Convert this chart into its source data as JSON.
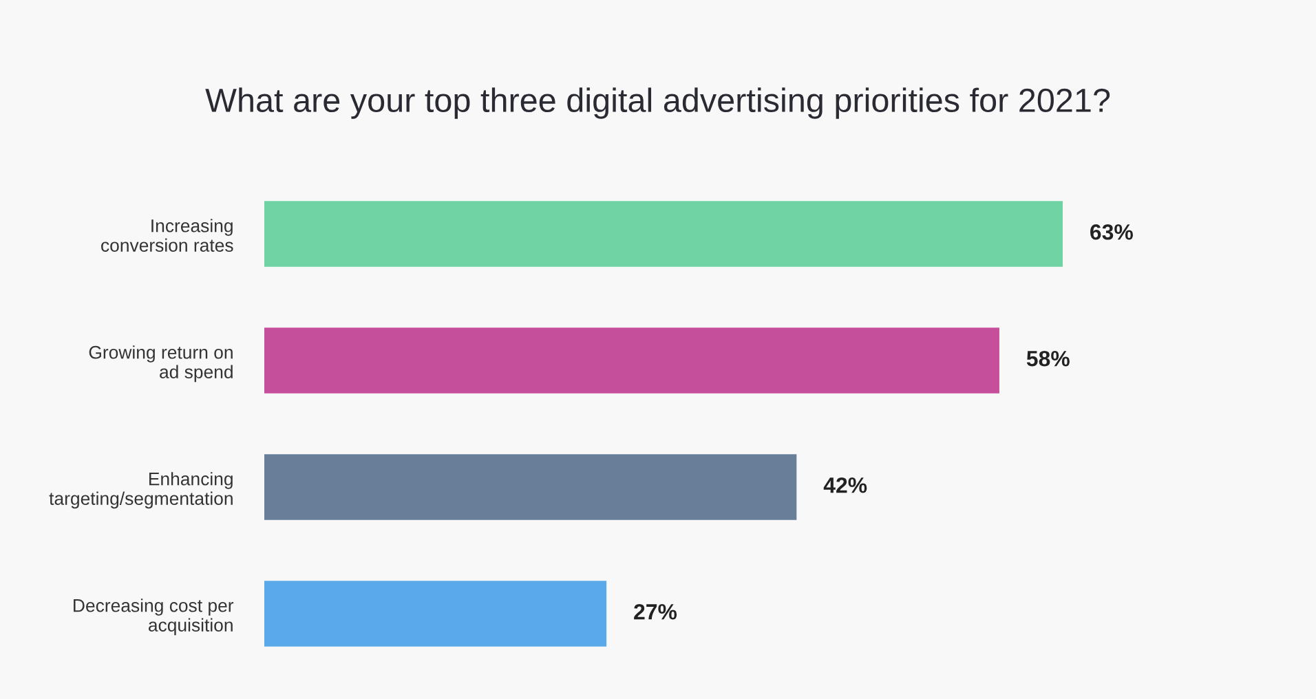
{
  "chart_data": {
    "type": "bar",
    "orientation": "horizontal",
    "title": "What are your top three digital advertising priorities for 2021?",
    "categories": [
      "Increasing\nconversion rates",
      "Growing return on\nad spend",
      "Enhancing\ntargeting/segmentation",
      "Decreasing cost per\nacquisition"
    ],
    "values": [
      63,
      58,
      42,
      27
    ],
    "colors": [
      "#6fd3a3",
      "#c64f9c",
      "#687e99",
      "#5aa9ea"
    ],
    "value_labels": [
      "63%",
      "58%",
      "42%",
      "27%"
    ],
    "grid": false,
    "legend": false
  }
}
